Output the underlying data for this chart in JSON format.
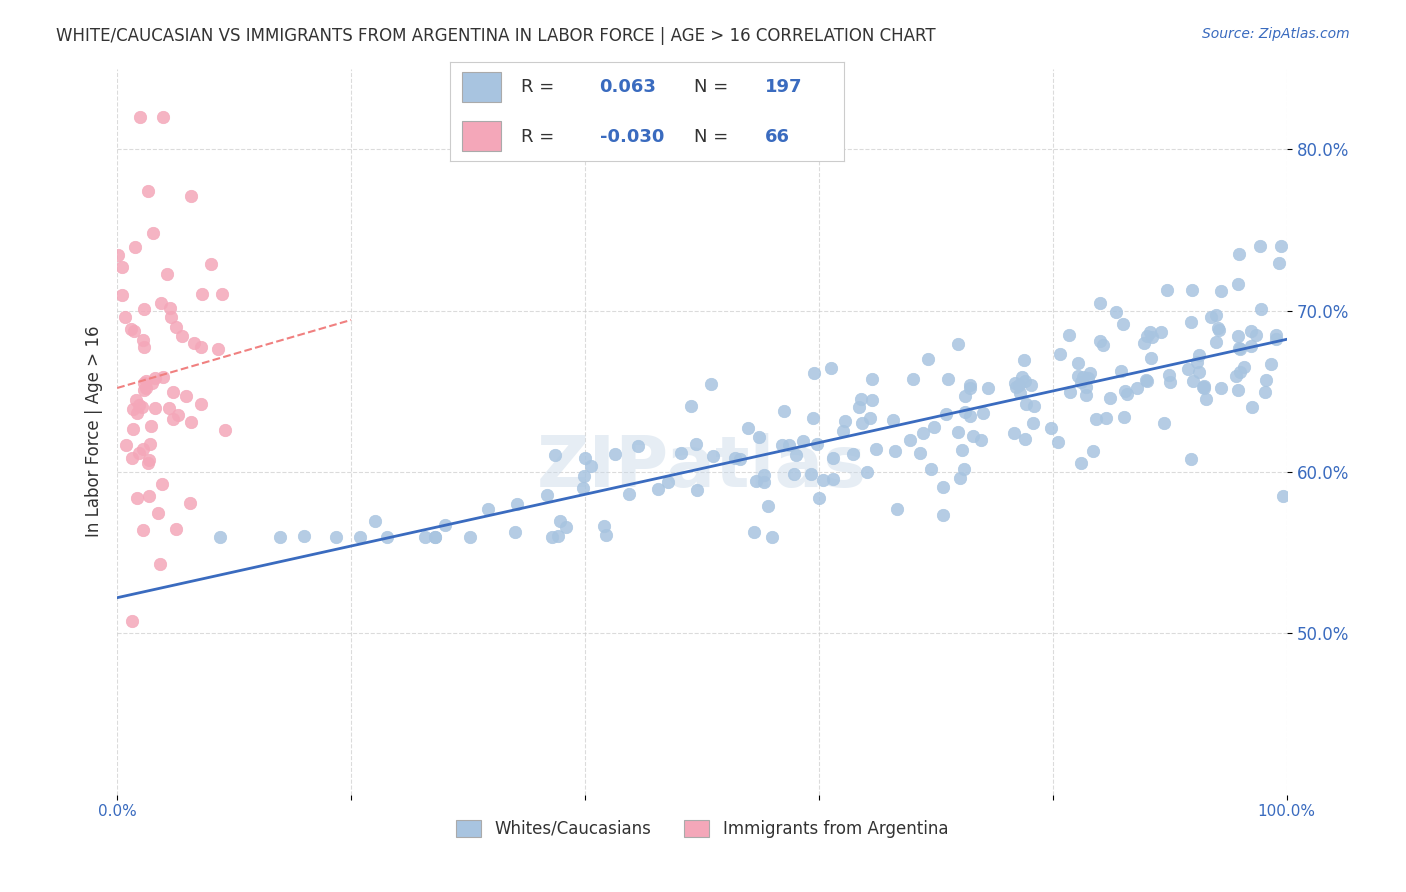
{
  "title": "WHITE/CAUCASIAN VS IMMIGRANTS FROM ARGENTINA IN LABOR FORCE | AGE > 16 CORRELATION CHART",
  "source": "Source: ZipAtlas.com",
  "ylabel": "In Labor Force | Age > 16",
  "xlabel": "",
  "xlim": [
    0,
    1
  ],
  "ylim": [
    0.4,
    0.85
  ],
  "yticks": [
    0.5,
    0.6,
    0.7,
    0.8
  ],
  "ytick_labels": [
    "50.0%",
    "60.0%",
    "70.0%",
    "80.0%"
  ],
  "xticks": [
    0.0,
    0.2,
    0.4,
    0.6,
    0.8,
    1.0
  ],
  "xtick_labels": [
    "0.0%",
    "",
    "",
    "",
    "",
    "100.0%"
  ],
  "blue_r": 0.063,
  "blue_n": 197,
  "pink_r": -0.03,
  "pink_n": 66,
  "blue_color": "#a8c4e0",
  "pink_color": "#f4a7b9",
  "blue_line_color": "#3a6bbf",
  "pink_line_color": "#f08080",
  "legend_box_color": "#ffffff",
  "legend_border_color": "#cccccc",
  "watermark": "ZIPatlas",
  "background_color": "#ffffff",
  "seed": 42
}
